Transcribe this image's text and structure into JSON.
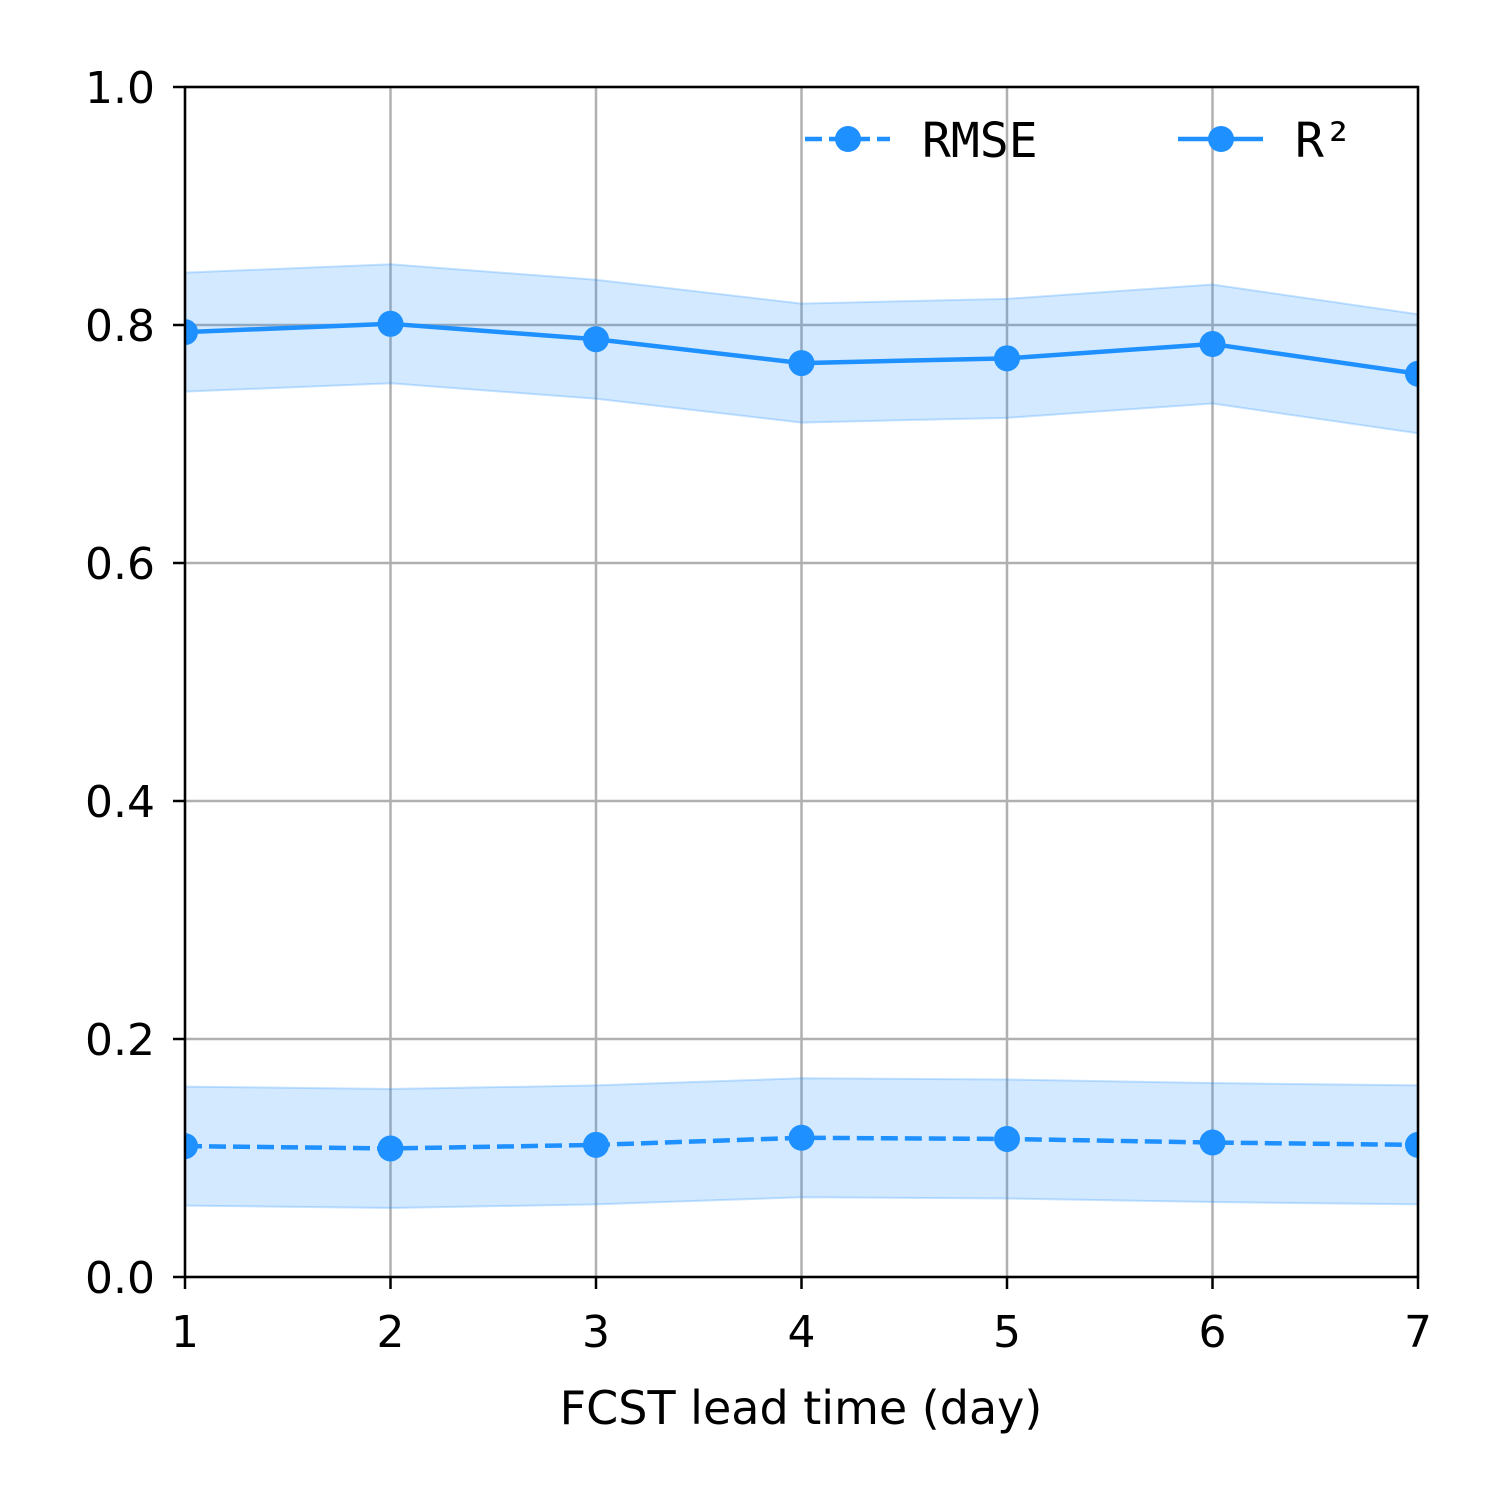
{
  "chart_data": {
    "type": "line",
    "title": "",
    "xlabel": "FCST lead time (day)",
    "ylabel": "",
    "x": [
      1,
      2,
      3,
      4,
      5,
      6,
      7
    ],
    "xlim": [
      1,
      7
    ],
    "ylim": [
      0.0,
      1.0
    ],
    "x_ticks": [
      "1",
      "2",
      "3",
      "4",
      "5",
      "6",
      "7"
    ],
    "y_ticks": [
      "0.0",
      "0.2",
      "0.4",
      "0.6",
      "0.8",
      "1.0"
    ],
    "grid": true,
    "legend_placement": "top-right",
    "series": [
      {
        "name": "RMSE",
        "line_style": "dashed",
        "marker": "circle",
        "color": "#1e90ff",
        "values": [
          0.11,
          0.108,
          0.111,
          0.117,
          0.116,
          0.113,
          0.111
        ],
        "band_lower": [
          0.06,
          0.058,
          0.061,
          0.067,
          0.066,
          0.063,
          0.061
        ],
        "band_upper": [
          0.16,
          0.158,
          0.161,
          0.167,
          0.166,
          0.163,
          0.161
        ]
      },
      {
        "name": "R²",
        "line_style": "solid",
        "marker": "circle",
        "color": "#1e90ff",
        "values": [
          0.794,
          0.801,
          0.788,
          0.768,
          0.772,
          0.784,
          0.759
        ],
        "band_lower": [
          0.744,
          0.751,
          0.738,
          0.718,
          0.722,
          0.734,
          0.709
        ],
        "band_upper": [
          0.844,
          0.851,
          0.838,
          0.818,
          0.822,
          0.834,
          0.809
        ]
      }
    ],
    "colors": {
      "series": "#1e90ff",
      "band": "#1e90ff",
      "grid": "#b0b0b0",
      "axes": "#000000"
    }
  }
}
